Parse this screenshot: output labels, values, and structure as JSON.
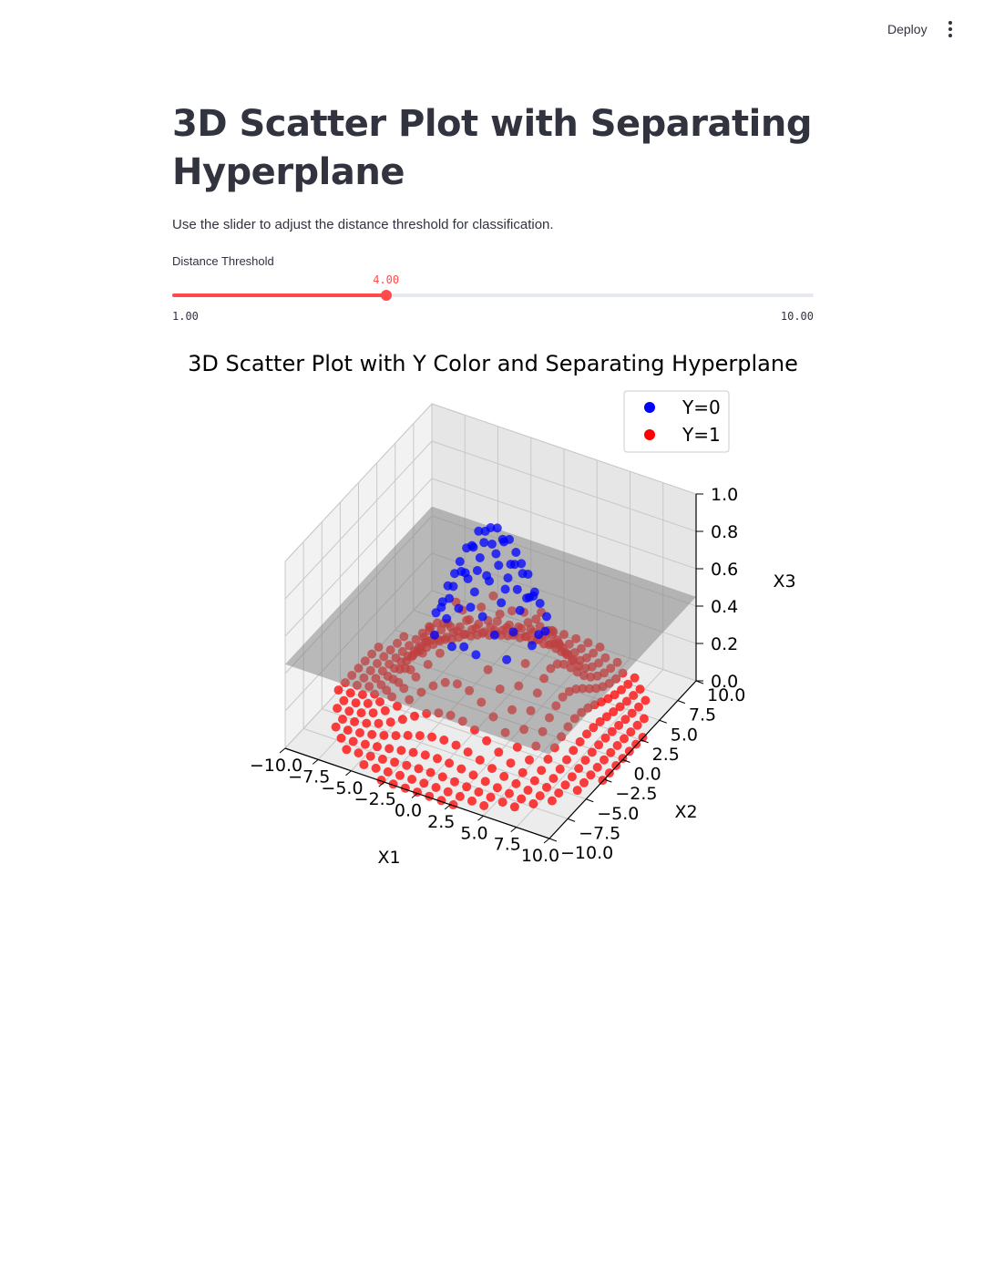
{
  "header": {
    "deploy_label": "Deploy",
    "menu_icon": "more-vertical-icon"
  },
  "main": {
    "title_line1": "3D Scatter Plot with Separating",
    "title_line2": "Hyperplane",
    "description": "Use the slider to adjust the distance threshold for classification."
  },
  "slider": {
    "label": "Distance Threshold",
    "value": 4.0,
    "value_label": "4.00",
    "min": 1.0,
    "min_label": "1.00",
    "max": 10.0,
    "max_label": "10.00",
    "accent": "#ff4b4b"
  },
  "chart_data": {
    "type": "scatter",
    "projection": "3d",
    "title": "3D Scatter Plot with Y Color and Separating Hyperplane",
    "xlabel": "X1",
    "ylabel": "X2",
    "zlabel": "X3",
    "xlim": [
      -10,
      10
    ],
    "ylim": [
      -10,
      10
    ],
    "zlim": [
      0,
      1
    ],
    "x_ticks": [
      "−10.0",
      "−7.5",
      "−5.0",
      "−2.5",
      "0.0",
      "2.5",
      "5.0",
      "7.5",
      "10.0"
    ],
    "y_ticks": [
      "−10.0",
      "−7.5",
      "−5.0",
      "−2.5",
      "0.0",
      "2.5",
      "5.0",
      "7.5",
      "10.0"
    ],
    "z_ticks": [
      "0.0",
      "0.2",
      "0.4",
      "0.6",
      "0.8",
      "1.0"
    ],
    "grid": true,
    "legend_position": "upper-right",
    "series": [
      {
        "name": "Y=0",
        "color": "#0000ff",
        "rule": "x1^2 + x2^2 < threshold^2"
      },
      {
        "name": "Y=1",
        "color": "#ff0000",
        "rule": "x1^2 + x2^2 >= threshold^2"
      }
    ],
    "surface": "x3 = exp(-(x1^2 + x2^2) / 20)",
    "hyperplane": {
      "x3": 0.45,
      "color": "#808080",
      "alpha": 0.5
    }
  }
}
